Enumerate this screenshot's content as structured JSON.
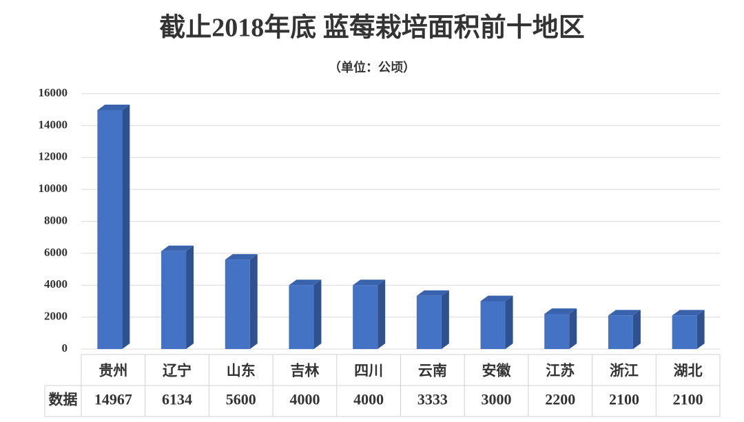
{
  "chart_data": {
    "type": "bar3d",
    "title": "截止2018年底 蓝莓栽培面积前十地区",
    "subtitle": "（单位：公顷）",
    "categories": [
      "贵州",
      "辽宁",
      "山东",
      "吉林",
      "四川",
      "云南",
      "安徽",
      "江苏",
      "浙江",
      "湖北"
    ],
    "values": [
      14967,
      6134,
      5600,
      4000,
      4000,
      3333,
      3000,
      2200,
      2100,
      2100
    ],
    "color": "#4472c4",
    "ylim": [
      0,
      16000
    ],
    "yticks": [
      0,
      2000,
      4000,
      6000,
      8000,
      10000,
      12000,
      14000,
      16000
    ],
    "grid": true,
    "table_row_label": "数据"
  }
}
